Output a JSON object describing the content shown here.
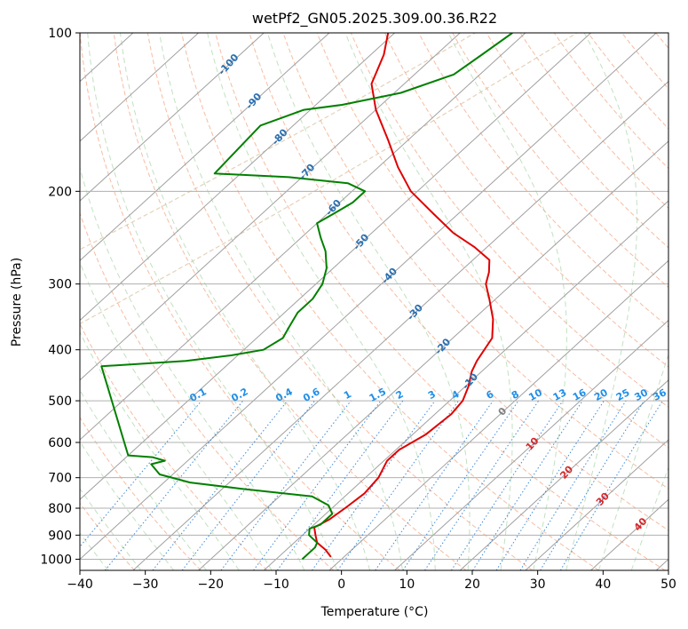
{
  "chart_data": {
    "type": "line",
    "subtype": "skew-t",
    "title": "wetPf2_GN05.2025.309.00.36.R22",
    "xlabel": "Temperature (°C)",
    "ylabel": "Pressure (hPa)",
    "xlim": [
      -40,
      50
    ],
    "ylim": [
      1050,
      100
    ],
    "yscale": "log",
    "grid": true,
    "x_ticks": [
      "−40",
      "−30",
      "−20",
      "−10",
      "0",
      "10",
      "20",
      "30",
      "40",
      "50"
    ],
    "x_tick_values": [
      -40,
      -30,
      -20,
      -10,
      0,
      10,
      20,
      30,
      40,
      50
    ],
    "y_ticks": [
      "100",
      "200",
      "300",
      "400",
      "500",
      "600",
      "700",
      "800",
      "900",
      "1000"
    ],
    "y_tick_values": [
      100,
      200,
      300,
      400,
      500,
      600,
      700,
      800,
      900,
      1000
    ],
    "isotherm_labels": [
      "-100",
      "-90",
      "-80",
      "-70",
      "-60",
      "-50",
      "-40",
      "-30",
      "-20",
      "-10",
      "0",
      "10",
      "20",
      "30",
      "40"
    ],
    "isotherm_values": [
      -100,
      -90,
      -80,
      -70,
      -60,
      -50,
      -40,
      -30,
      -20,
      -10,
      0,
      10,
      20,
      30,
      40
    ],
    "mixing_ratio_labels": [
      "0.1",
      "0.2",
      "0.4",
      "0.6",
      "1",
      "1.5",
      "2",
      "3",
      "4",
      "6",
      "8",
      "10",
      "13",
      "16",
      "20",
      "25",
      "30",
      "36"
    ],
    "mixing_ratio_values": [
      0.1,
      0.2,
      0.4,
      0.6,
      1,
      1.5,
      2,
      3,
      4,
      6,
      8,
      10,
      13,
      16,
      20,
      25,
      30,
      36
    ],
    "series": [
      {
        "color": "#e00000",
        "values": [
          {
            "p": 990,
            "t": -2
          },
          {
            "p": 960,
            "t": -4
          },
          {
            "p": 930,
            "t": -6.5
          },
          {
            "p": 900,
            "t": -8
          },
          {
            "p": 870,
            "t": -9.5
          },
          {
            "p": 840,
            "t": -8.5
          },
          {
            "p": 800,
            "t": -8
          },
          {
            "p": 750,
            "t": -7.5
          },
          {
            "p": 700,
            "t": -8
          },
          {
            "p": 650,
            "t": -9.5
          },
          {
            "p": 620,
            "t": -9.5
          },
          {
            "p": 580,
            "t": -8
          },
          {
            "p": 530,
            "t": -7.5
          },
          {
            "p": 500,
            "t": -8
          },
          {
            "p": 470,
            "t": -9.5
          },
          {
            "p": 440,
            "t": -11.5
          },
          {
            "p": 420,
            "t": -12.5
          },
          {
            "p": 380,
            "t": -14
          },
          {
            "p": 350,
            "t": -17
          },
          {
            "p": 320,
            "t": -21
          },
          {
            "p": 300,
            "t": -24
          },
          {
            "p": 285,
            "t": -25.5
          },
          {
            "p": 270,
            "t": -27.5
          },
          {
            "p": 255,
            "t": -32
          },
          {
            "p": 240,
            "t": -37.5
          },
          {
            "p": 220,
            "t": -44
          },
          {
            "p": 200,
            "t": -51
          },
          {
            "p": 180,
            "t": -57
          },
          {
            "p": 160,
            "t": -63
          },
          {
            "p": 140,
            "t": -70
          },
          {
            "p": 125,
            "t": -75
          },
          {
            "p": 110,
            "t": -78
          },
          {
            "p": 100,
            "t": -81
          }
        ]
      },
      {
        "color": "#008000",
        "values": [
          {
            "p": 1000,
            "t": -6
          },
          {
            "p": 950,
            "t": -6
          },
          {
            "p": 930,
            "t": -6.5
          },
          {
            "p": 900,
            "t": -9
          },
          {
            "p": 875,
            "t": -10
          },
          {
            "p": 860,
            "t": -9
          },
          {
            "p": 820,
            "t": -9
          },
          {
            "p": 790,
            "t": -11
          },
          {
            "p": 760,
            "t": -15
          },
          {
            "p": 735,
            "t": -27
          },
          {
            "p": 715,
            "t": -36
          },
          {
            "p": 690,
            "t": -42
          },
          {
            "p": 670,
            "t": -44
          },
          {
            "p": 660,
            "t": -45
          },
          {
            "p": 650,
            "t": -43.5
          },
          {
            "p": 640,
            "t": -46
          },
          {
            "p": 635,
            "t": -50
          },
          {
            "p": 430,
            "t": -69
          },
          {
            "p": 420,
            "t": -57
          },
          {
            "p": 410,
            "t": -51
          },
          {
            "p": 400,
            "t": -47
          },
          {
            "p": 380,
            "t": -46
          },
          {
            "p": 360,
            "t": -47
          },
          {
            "p": 340,
            "t": -48
          },
          {
            "p": 320,
            "t": -48
          },
          {
            "p": 300,
            "t": -49
          },
          {
            "p": 280,
            "t": -51
          },
          {
            "p": 260,
            "t": -54
          },
          {
            "p": 245,
            "t": -57
          },
          {
            "p": 230,
            "t": -60
          },
          {
            "p": 220,
            "t": -59
          },
          {
            "p": 210,
            "t": -58
          },
          {
            "p": 200,
            "t": -58
          },
          {
            "p": 193,
            "t": -62
          },
          {
            "p": 188,
            "t": -72
          },
          {
            "p": 185,
            "t": -84
          },
          {
            "p": 150,
            "t": -85
          },
          {
            "p": 140,
            "t": -81
          },
          {
            "p": 137,
            "t": -76
          },
          {
            "p": 130,
            "t": -69
          },
          {
            "p": 120,
            "t": -64
          },
          {
            "p": 110,
            "t": -63
          },
          {
            "p": 100,
            "t": -62
          }
        ]
      }
    ]
  }
}
